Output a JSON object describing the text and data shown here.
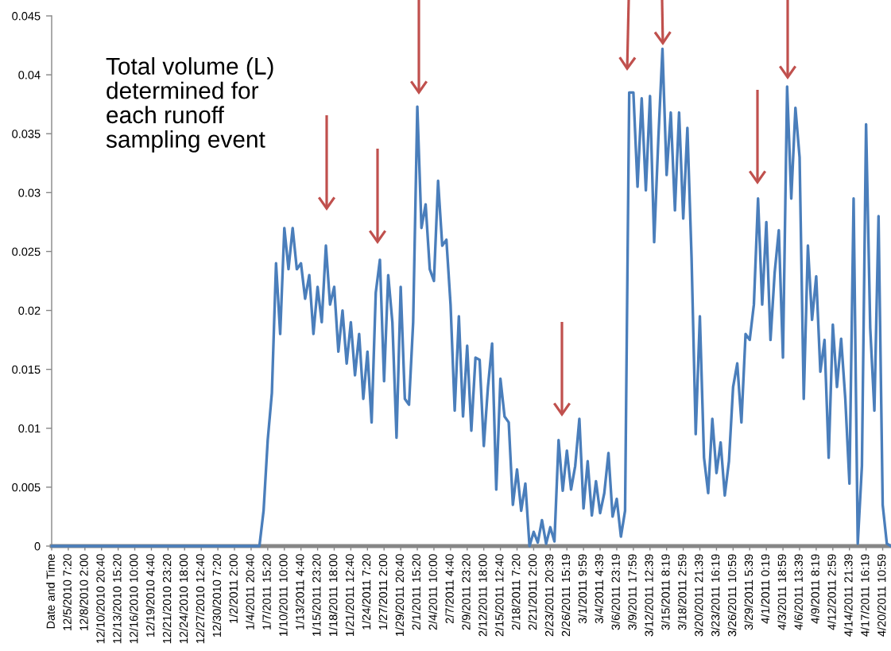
{
  "chart_data": {
    "type": "line",
    "categories": [
      "Date and Time",
      null,
      null,
      null,
      "12/5/2010 7:20",
      null,
      null,
      null,
      "12/8/2010 2:00",
      null,
      null,
      null,
      "12/10/2010 20:40",
      null,
      null,
      null,
      "12/13/2010 15:20",
      null,
      null,
      null,
      "12/16/2010 10:00",
      null,
      null,
      null,
      "12/19/2010 4:40",
      null,
      null,
      null,
      "12/21/2010 23:20",
      null,
      null,
      null,
      "12/24/2010 18:00",
      null,
      null,
      null,
      "12/27/2010 12:40",
      null,
      null,
      null,
      "12/30/2010 7:20",
      null,
      null,
      null,
      "1/2/2011 2:00",
      null,
      null,
      null,
      "1/4/2011 20:40",
      null,
      null,
      null,
      "1/7/2011 15:20",
      null,
      null,
      null,
      "1/10/2011 10:00",
      null,
      null,
      null,
      "1/13/2011 4:40",
      null,
      null,
      null,
      "1/15/2011 23:20",
      null,
      null,
      null,
      "1/18/2011 18:00",
      null,
      null,
      null,
      "1/21/2011 12:40",
      null,
      null,
      null,
      "1/24/2011 7:20",
      null,
      null,
      null,
      "1/27/2011 2:00",
      null,
      null,
      null,
      "1/29/2011 20:40",
      null,
      null,
      null,
      "2/1/2011 15:20",
      null,
      null,
      null,
      "2/4/2011 10:00",
      null,
      null,
      null,
      "2/7/2011 4:40",
      null,
      null,
      null,
      "2/9/2011 23:20",
      null,
      null,
      null,
      "2/12/2011 18:00",
      null,
      null,
      null,
      "2/15/2011 12:40",
      null,
      null,
      null,
      "2/18/2011 7:20",
      null,
      null,
      null,
      "2/21/2011 2:00",
      null,
      null,
      null,
      "2/23/2011 20:39",
      null,
      null,
      null,
      "2/26/2011 15:19",
      null,
      null,
      null,
      "3/1/2011 9:59",
      null,
      null,
      null,
      "3/4/2011 4:39",
      null,
      null,
      null,
      "3/6/2011 23:19",
      null,
      null,
      null,
      "3/9/2011 17:59",
      null,
      null,
      null,
      "3/12/2011 12:39",
      null,
      null,
      null,
      "3/15/2011 8:19",
      null,
      null,
      null,
      "3/18/2011 2:59",
      null,
      null,
      null,
      "3/20/2011 21:39",
      null,
      null,
      null,
      "3/23/2011 16:19",
      null,
      null,
      null,
      "3/26/2011 10:59",
      null,
      null,
      null,
      "3/29/2011 5:39",
      null,
      null,
      null,
      "4/1/2011 0:19",
      null,
      null,
      null,
      "4/3/2011 18:59",
      null,
      null,
      null,
      "4/6/2011 13:39",
      null,
      null,
      null,
      "4/9/2011 8:19",
      null,
      null,
      null,
      "4/12/2011 2:59",
      null,
      null,
      null,
      "4/14/2011 21:39",
      null,
      null,
      null,
      "4/17/2011 16:19",
      null,
      null,
      null,
      "4/20/2011 10:59",
      null,
      null
    ],
    "series": [
      {
        "color": "#4a7ebb",
        "values": [
          0,
          0,
          0,
          0,
          0,
          0,
          0,
          0,
          0,
          0,
          0,
          0,
          0,
          0,
          0,
          0,
          0,
          0,
          0,
          0,
          0,
          0,
          0,
          0,
          0,
          0,
          0,
          0,
          0,
          0,
          0,
          0,
          0,
          0,
          0,
          0,
          0,
          0,
          0,
          0,
          0,
          0,
          0,
          0,
          0,
          0,
          0,
          0,
          0,
          0,
          0,
          0.003,
          0.009,
          0.013,
          0.024,
          0.018,
          0.027,
          0.0235,
          0.027,
          0.0235,
          0.024,
          0.021,
          0.023,
          0.018,
          0.022,
          0.019,
          0.0255,
          0.0205,
          0.022,
          0.0165,
          0.02,
          0.0155,
          0.019,
          0.0145,
          0.018,
          0.0125,
          0.0165,
          0.0105,
          0.0215,
          0.0243,
          0.014,
          0.023,
          0.019,
          0.0092,
          0.022,
          0.0125,
          0.012,
          0.019,
          0.0373,
          0.027,
          0.029,
          0.0235,
          0.0225,
          0.031,
          0.0255,
          0.026,
          0.0205,
          0.0115,
          0.0195,
          0.011,
          0.017,
          0.0098,
          0.016,
          0.0158,
          0.0085,
          0.0135,
          0.0172,
          0.0048,
          0.0142,
          0.011,
          0.0105,
          0.0035,
          0.0065,
          0.003,
          0.0053,
          0,
          0.0012,
          0.0003,
          0.0022,
          0.0002,
          0.0016,
          0.0004,
          0.009,
          0.0047,
          0.0081,
          0.0048,
          0.0068,
          0.0108,
          0.0032,
          0.0072,
          0.0026,
          0.0055,
          0.0028,
          0.0045,
          0.0079,
          0.0025,
          0.004,
          0.0008,
          0.003,
          0.0385,
          0.0385,
          0.0305,
          0.038,
          0.0302,
          0.0382,
          0.0258,
          0.0345,
          0.0422,
          0.0315,
          0.0368,
          0.0285,
          0.0368,
          0.0278,
          0.0355,
          0.0245,
          0.0095,
          0.0195,
          0.0075,
          0.0045,
          0.0108,
          0.0062,
          0.0088,
          0.0043,
          0.0072,
          0.0135,
          0.0155,
          0.0105,
          0.018,
          0.0175,
          0.0205,
          0.0295,
          0.0205,
          0.0275,
          0.0175,
          0.0232,
          0.0268,
          0.016,
          0.039,
          0.0295,
          0.0372,
          0.033,
          0.0125,
          0.0255,
          0.0192,
          0.0229,
          0.0148,
          0.0175,
          0.0075,
          0.0188,
          0.0135,
          0.0176,
          0.0125,
          0.0053,
          0.0295,
          0.0002,
          0.0068,
          0.0358,
          0.0185,
          0.0115,
          0.028,
          0.0035,
          0.0002,
          0
        ]
      }
    ],
    "ylim": [
      0,
      0.045
    ],
    "yticks": [
      0,
      0.005,
      0.01,
      0.015,
      0.02,
      0.025,
      0.03,
      0.035,
      0.04,
      0.045
    ],
    "annotations": [
      "Total volume (L)\ndetermined for\neach runoff\nsampling event"
    ]
  }
}
